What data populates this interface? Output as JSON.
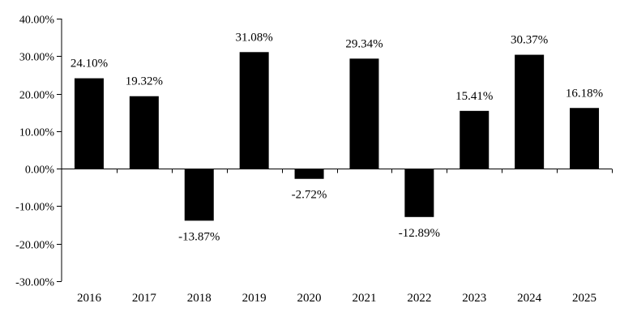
{
  "chart_data": {
    "type": "bar",
    "title": "",
    "xlabel": "",
    "ylabel": "",
    "categories": [
      "2016",
      "2017",
      "2018",
      "2019",
      "2020",
      "2021",
      "2022",
      "2023",
      "2024",
      "2025"
    ],
    "values": [
      24.1,
      19.32,
      -13.87,
      31.08,
      -2.72,
      29.34,
      -12.89,
      15.41,
      30.37,
      16.18
    ],
    "value_labels": [
      "24.10%",
      "19.32%",
      "-13.87%",
      "31.08%",
      "-2.72%",
      "29.34%",
      "-12.89%",
      "15.41%",
      "30.37%",
      "16.18%"
    ],
    "ylim": [
      -30,
      40
    ],
    "yticks": [
      40,
      30,
      20,
      10,
      0,
      -10,
      -20,
      -30
    ],
    "ytick_labels": [
      "40.00%",
      "30.00%",
      "20.00%",
      "10.00%",
      "0.00%",
      "-10.00%",
      "-20.00%",
      "-30.00%"
    ],
    "grid": false,
    "legend": "none",
    "bar_color": "#000000"
  }
}
